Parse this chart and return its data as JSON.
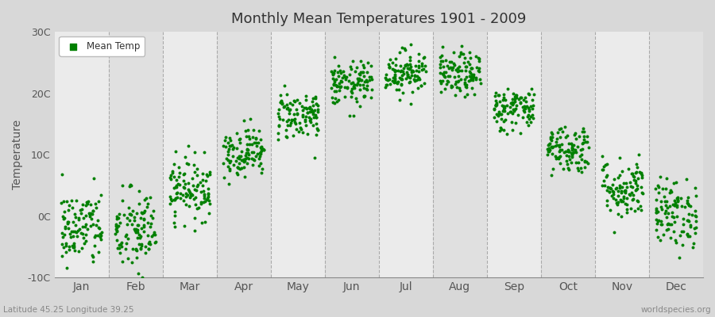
{
  "title": "Monthly Mean Temperatures 1901 - 2009",
  "ylabel": "Temperature",
  "xlabel_bottom_left": "Latitude 45.25 Longitude 39.25",
  "xlabel_bottom_right": "worldspecies.org",
  "ylim": [
    -10,
    30
  ],
  "yticks": [
    -10,
    0,
    10,
    20,
    30
  ],
  "ytick_labels": [
    "-10C",
    "0C",
    "10C",
    "20C",
    "30C"
  ],
  "months": [
    "Jan",
    "Feb",
    "Mar",
    "Apr",
    "May",
    "Jun",
    "Jul",
    "Aug",
    "Sep",
    "Oct",
    "Nov",
    "Dec"
  ],
  "dot_color": "#008000",
  "bg_color_light": "#DCDCDC",
  "bg_color_dark": "#EBEBEB",
  "legend_label": "Mean Temp",
  "n_years": 109,
  "mean_temps": [
    -2.0,
    -2.5,
    4.5,
    10.5,
    16.5,
    21.5,
    23.5,
    23.0,
    17.5,
    11.0,
    4.5,
    0.5
  ],
  "std_temps": [
    3.2,
    3.5,
    2.5,
    2.0,
    2.0,
    1.8,
    1.8,
    1.8,
    1.8,
    2.0,
    2.5,
    2.8
  ],
  "marker_size": 8,
  "fig_bg": "#D8D8D8",
  "plot_bg": "#E8E8E8",
  "stripe_even": "#E0E0E0",
  "stripe_odd": "#EBEBEB"
}
